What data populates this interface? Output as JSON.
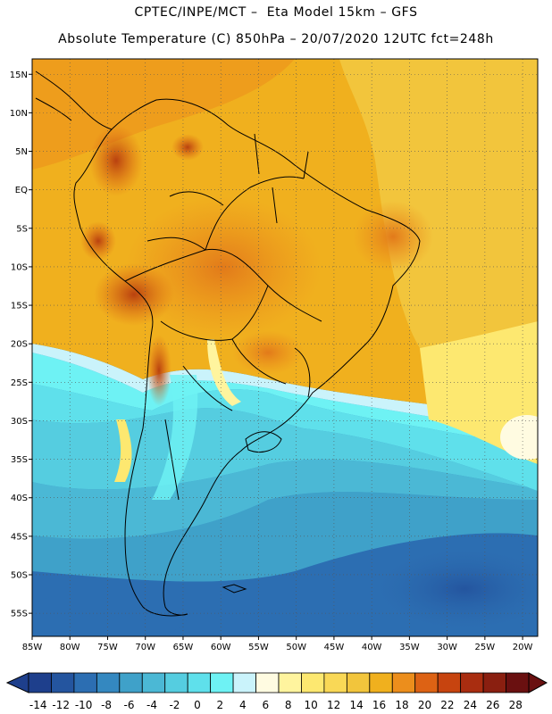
{
  "title_line1": "CPTEC/INPE/MCT –  Eta Model 15km – GFS",
  "title_line2": "Absolute Temperature (C) 850hPa – 20/07/2020 12UTC fct=248h",
  "map": {
    "lon_min": -85,
    "lon_max": -18,
    "lat_min": -58,
    "lat_max": 17,
    "lat_ticks": [
      {
        "value": 15,
        "label": "15N"
      },
      {
        "value": 10,
        "label": "10N"
      },
      {
        "value": 5,
        "label": "5N"
      },
      {
        "value": 0,
        "label": "EQ"
      },
      {
        "value": -5,
        "label": "5S"
      },
      {
        "value": -10,
        "label": "10S"
      },
      {
        "value": -15,
        "label": "15S"
      },
      {
        "value": -20,
        "label": "20S"
      },
      {
        "value": -25,
        "label": "25S"
      },
      {
        "value": -30,
        "label": "30S"
      },
      {
        "value": -35,
        "label": "35S"
      },
      {
        "value": -40,
        "label": "40S"
      },
      {
        "value": -45,
        "label": "45S"
      },
      {
        "value": -50,
        "label": "50S"
      },
      {
        "value": -55,
        "label": "55S"
      }
    ],
    "lon_ticks": [
      {
        "value": -85,
        "label": "85W"
      },
      {
        "value": -80,
        "label": "80W"
      },
      {
        "value": -75,
        "label": "75W"
      },
      {
        "value": -70,
        "label": "70W"
      },
      {
        "value": -65,
        "label": "65W"
      },
      {
        "value": -60,
        "label": "60W"
      },
      {
        "value": -55,
        "label": "55W"
      },
      {
        "value": -50,
        "label": "50W"
      },
      {
        "value": -45,
        "label": "45W"
      },
      {
        "value": -40,
        "label": "40W"
      },
      {
        "value": -35,
        "label": "35W"
      },
      {
        "value": -30,
        "label": "30W"
      },
      {
        "value": -25,
        "label": "25W"
      },
      {
        "value": -20,
        "label": "20W"
      }
    ]
  },
  "colorbar": {
    "labels": [
      "-14",
      "-12",
      "-10",
      "-8",
      "-6",
      "-4",
      "-2",
      "0",
      "2",
      "4",
      "6",
      "8",
      "10",
      "12",
      "14",
      "16",
      "18",
      "20",
      "22",
      "24",
      "26",
      "28"
    ],
    "colors": [
      "#1e3f8c",
      "#24559f",
      "#2c6eb2",
      "#3488c0",
      "#3fa1c9",
      "#4bb8d5",
      "#55cde0",
      "#5fe0eb",
      "#6ef2f4",
      "#caf3fb",
      "#fffbe1",
      "#fff49e",
      "#fde870",
      "#f9d856",
      "#f2c53c",
      "#f0b01e",
      "#ec8e1c",
      "#dd6214",
      "#c7440f",
      "#a92d10",
      "#8a1f10",
      "#6a1010"
    ]
  }
}
